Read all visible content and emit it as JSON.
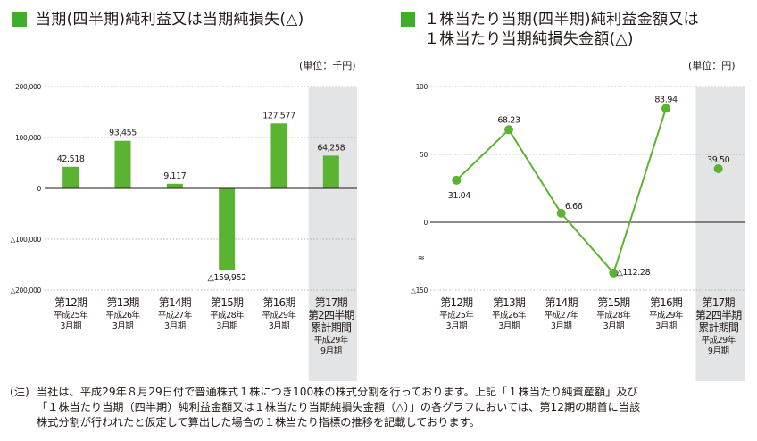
{
  "titles": {
    "left": "当期(四半期)純利益又は当期純損失(△)",
    "right": "１株当たり当期(四半期)純利益金額又は\n１株当たり当期純損失金額(△)"
  },
  "units": {
    "left": "(単位：千円)",
    "right": "(単位：円)"
  },
  "colors": {
    "bar": "#5bb431",
    "line": "#5bb431",
    "shade": "#e3e4e5",
    "title_square": "#3fae2a"
  },
  "periods": [
    {
      "name": "第12期",
      "sub": [
        "平成25年",
        "3月期"
      ]
    },
    {
      "name": "第13期",
      "sub": [
        "平成26年",
        "3月期"
      ]
    },
    {
      "name": "第14期",
      "sub": [
        "平成27年",
        "3月期"
      ]
    },
    {
      "name": "第15期",
      "sub": [
        "平成28年",
        "3月期"
      ]
    },
    {
      "name": "第16期",
      "sub": [
        "平成29年",
        "3月期"
      ]
    },
    {
      "name": "第17期",
      "name2": "第2四半期",
      "name3": "累計期間",
      "sub": [
        "平成29年",
        "9月期"
      ]
    }
  ],
  "chart_data": [
    {
      "type": "bar",
      "categories": [
        "第12期",
        "第13期",
        "第14期",
        "第15期",
        "第16期",
        "第17期第2四半期累計期間"
      ],
      "values": [
        42518,
        93455,
        9117,
        -159952,
        127577,
        64258
      ],
      "value_labels": [
        "42,518",
        "93,455",
        "9,117",
        "△159,952",
        "127,577",
        "64,258"
      ],
      "ylim": [
        -200000,
        200000
      ],
      "yticks": [
        200000,
        100000,
        0,
        -100000,
        -200000
      ],
      "ytick_labels": [
        "200,000",
        "100,000",
        "0",
        "△100,000",
        "△200,000"
      ],
      "grid": false,
      "highlighted_category": "第17期第2四半期累計期間"
    },
    {
      "type": "line",
      "categories": [
        "第12期",
        "第13期",
        "第14期",
        "第15期",
        "第16期",
        "第17期第2四半期累計期間"
      ],
      "values": [
        31.04,
        68.23,
        6.66,
        -112.28,
        83.94,
        39.5
      ],
      "value_labels": [
        "31.04",
        "68.23",
        "6.66",
        "△112.28",
        "83.94",
        "39.50"
      ],
      "connected_points": 5,
      "ylim": [
        -150,
        100
      ],
      "yticks": [
        100,
        50,
        0,
        -150
      ],
      "ytick_labels": [
        "100",
        "50",
        "0",
        "△150"
      ],
      "axis_break": true,
      "grid": false,
      "highlighted_category": "第17期第2四半期累計期間"
    }
  ],
  "note": {
    "mark": "(注)",
    "lines": [
      "当社は、平成29年８月29日付で普通株式１株につき100株の株式分割を行っております。上記「１株当たり純資産額」及び",
      "「１株当たり当期（四半期）純利益金額又は１株当たり当期純損失金額（△）」の各グラフにおいては、第12期の期首に当該",
      "株式分割が行われたと仮定して算出した場合の１株当たり指標の推移を記載しております。"
    ]
  }
}
